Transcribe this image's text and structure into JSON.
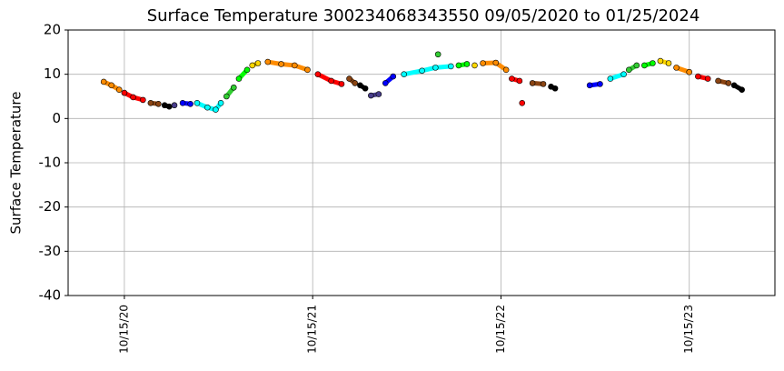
{
  "chart_data": {
    "type": "scatter",
    "title": "Surface Temperature 300234068343550  09/05/2020 to 01/25/2024",
    "y_label": "Surface Temperature",
    "xlim": [
      "2020-06-28",
      "2024-03-29"
    ],
    "xticks": [
      {
        "value": "2020-10-15",
        "label": "10/15/20"
      },
      {
        "value": "2021-10-15",
        "label": "10/15/21"
      },
      {
        "value": "2022-10-15",
        "label": "10/15/22"
      },
      {
        "value": "2023-10-15",
        "label": "10/15/23"
      }
    ],
    "ylim": [
      -40,
      20
    ],
    "yticks": [
      -40,
      -30,
      -20,
      -10,
      0,
      10,
      20
    ],
    "grid": true,
    "series": [
      {
        "color": "#ff8c00",
        "x": [
          "2020-09-05",
          "2020-09-20",
          "2020-10-05"
        ],
        "values": [
          8.3,
          7.5,
          6.5
        ]
      },
      {
        "color": "#ff0000",
        "x": [
          "2020-10-15",
          "2020-11-01",
          "2020-11-20"
        ],
        "values": [
          5.8,
          4.8,
          4.2
        ]
      },
      {
        "color": "#8b4513",
        "x": [
          "2020-12-05",
          "2020-12-20"
        ],
        "values": [
          3.5,
          3.3
        ]
      },
      {
        "color": "#000000",
        "x": [
          "2021-01-01",
          "2021-01-10"
        ],
        "values": [
          3.0,
          2.7
        ]
      },
      {
        "color": "#483d8b",
        "x": [
          "2021-01-20"
        ],
        "values": [
          3.0
        ]
      },
      {
        "color": "#0000ff",
        "x": [
          "2021-02-05",
          "2021-02-20"
        ],
        "values": [
          3.5,
          3.3
        ]
      },
      {
        "color": "#00ffff",
        "x": [
          "2021-03-05",
          "2021-03-25",
          "2021-04-10",
          "2021-04-20"
        ],
        "values": [
          3.5,
          2.5,
          2.0,
          3.5
        ]
      },
      {
        "color": "#32cd32",
        "x": [
          "2021-05-01",
          "2021-05-15"
        ],
        "values": [
          5.0,
          7.0
        ]
      },
      {
        "color": "#00ff00",
        "x": [
          "2021-05-25",
          "2021-06-10"
        ],
        "values": [
          9,
          11
        ]
      },
      {
        "color": "#ffd700",
        "x": [
          "2021-06-20",
          "2021-07-01"
        ],
        "values": [
          12,
          12.5
        ]
      },
      {
        "color": "#ff8c00",
        "x": [
          "2021-07-20",
          "2021-08-15",
          "2021-09-10",
          "2021-10-05"
        ],
        "values": [
          12.8,
          12.3,
          12.0,
          11.0
        ]
      },
      {
        "color": "#ff0000",
        "x": [
          "2021-10-25",
          "2021-11-20",
          "2021-12-10"
        ],
        "values": [
          10.0,
          8.5,
          7.8
        ]
      },
      {
        "color": "#8b4513",
        "x": [
          "2021-12-25",
          "2022-01-05"
        ],
        "values": [
          9.0,
          8.0
        ]
      },
      {
        "color": "#000000",
        "x": [
          "2022-01-15",
          "2022-01-25"
        ],
        "values": [
          7.5,
          6.8
        ]
      },
      {
        "color": "#483d8b",
        "x": [
          "2022-02-05",
          "2022-02-20"
        ],
        "values": [
          5.2,
          5.5
        ]
      },
      {
        "color": "#0000ff",
        "x": [
          "2022-03-05",
          "2022-03-20"
        ],
        "values": [
          8.0,
          9.5
        ]
      },
      {
        "color": "#00ffff",
        "x": [
          "2022-04-10",
          "2022-05-15",
          "2022-06-10",
          "2022-07-10"
        ],
        "values": [
          10,
          10.8,
          11.5,
          11.8
        ]
      },
      {
        "color": "#32cd32",
        "x": [
          "2022-06-15"
        ],
        "values": [
          14.5
        ]
      },
      {
        "color": "#00ff00",
        "x": [
          "2022-07-25",
          "2022-08-10"
        ],
        "values": [
          12.0,
          12.3
        ]
      },
      {
        "color": "#ffd700",
        "x": [
          "2022-08-25"
        ],
        "values": [
          12.0
        ]
      },
      {
        "color": "#ff8c00",
        "x": [
          "2022-09-10",
          "2022-10-05",
          "2022-10-25"
        ],
        "values": [
          12.5,
          12.6,
          11.0
        ]
      },
      {
        "color": "#ff0000",
        "x": [
          "2022-11-05",
          "2022-11-20"
        ],
        "values": [
          9,
          8.5
        ]
      },
      {
        "color": "#ff0000",
        "x": [
          "2022-11-25"
        ],
        "values": [
          3.5
        ]
      },
      {
        "color": "#8b4513",
        "x": [
          "2022-12-15",
          "2023-01-05"
        ],
        "values": [
          8.0,
          7.8
        ]
      },
      {
        "color": "#000000",
        "x": [
          "2023-01-20",
          "2023-01-28"
        ],
        "values": [
          7.2,
          6.8
        ]
      },
      {
        "color": "#0000ff",
        "x": [
          "2023-04-05",
          "2023-04-25"
        ],
        "values": [
          7.5,
          7.8
        ]
      },
      {
        "color": "#00ffff",
        "x": [
          "2023-05-15",
          "2023-06-10"
        ],
        "values": [
          9,
          10
        ]
      },
      {
        "color": "#32cd32",
        "x": [
          "2023-06-20",
          "2023-07-05"
        ],
        "values": [
          11,
          12
        ]
      },
      {
        "color": "#00ff00",
        "x": [
          "2023-07-20",
          "2023-08-05"
        ],
        "values": [
          12,
          12.5
        ]
      },
      {
        "color": "#ffd700",
        "x": [
          "2023-08-20",
          "2023-09-05"
        ],
        "values": [
          13,
          12.5
        ]
      },
      {
        "color": "#ff8c00",
        "x": [
          "2023-09-20",
          "2023-10-15"
        ],
        "values": [
          11.5,
          10.5
        ]
      },
      {
        "color": "#ff0000",
        "x": [
          "2023-11-01",
          "2023-11-20"
        ],
        "values": [
          9.5,
          9.0
        ]
      },
      {
        "color": "#8b4513",
        "x": [
          "2023-12-10",
          "2023-12-30"
        ],
        "values": [
          8.5,
          8.0
        ]
      },
      {
        "color": "#000000",
        "x": [
          "2024-01-10",
          "2024-01-25"
        ],
        "values": [
          7.5,
          6.5
        ]
      }
    ]
  }
}
